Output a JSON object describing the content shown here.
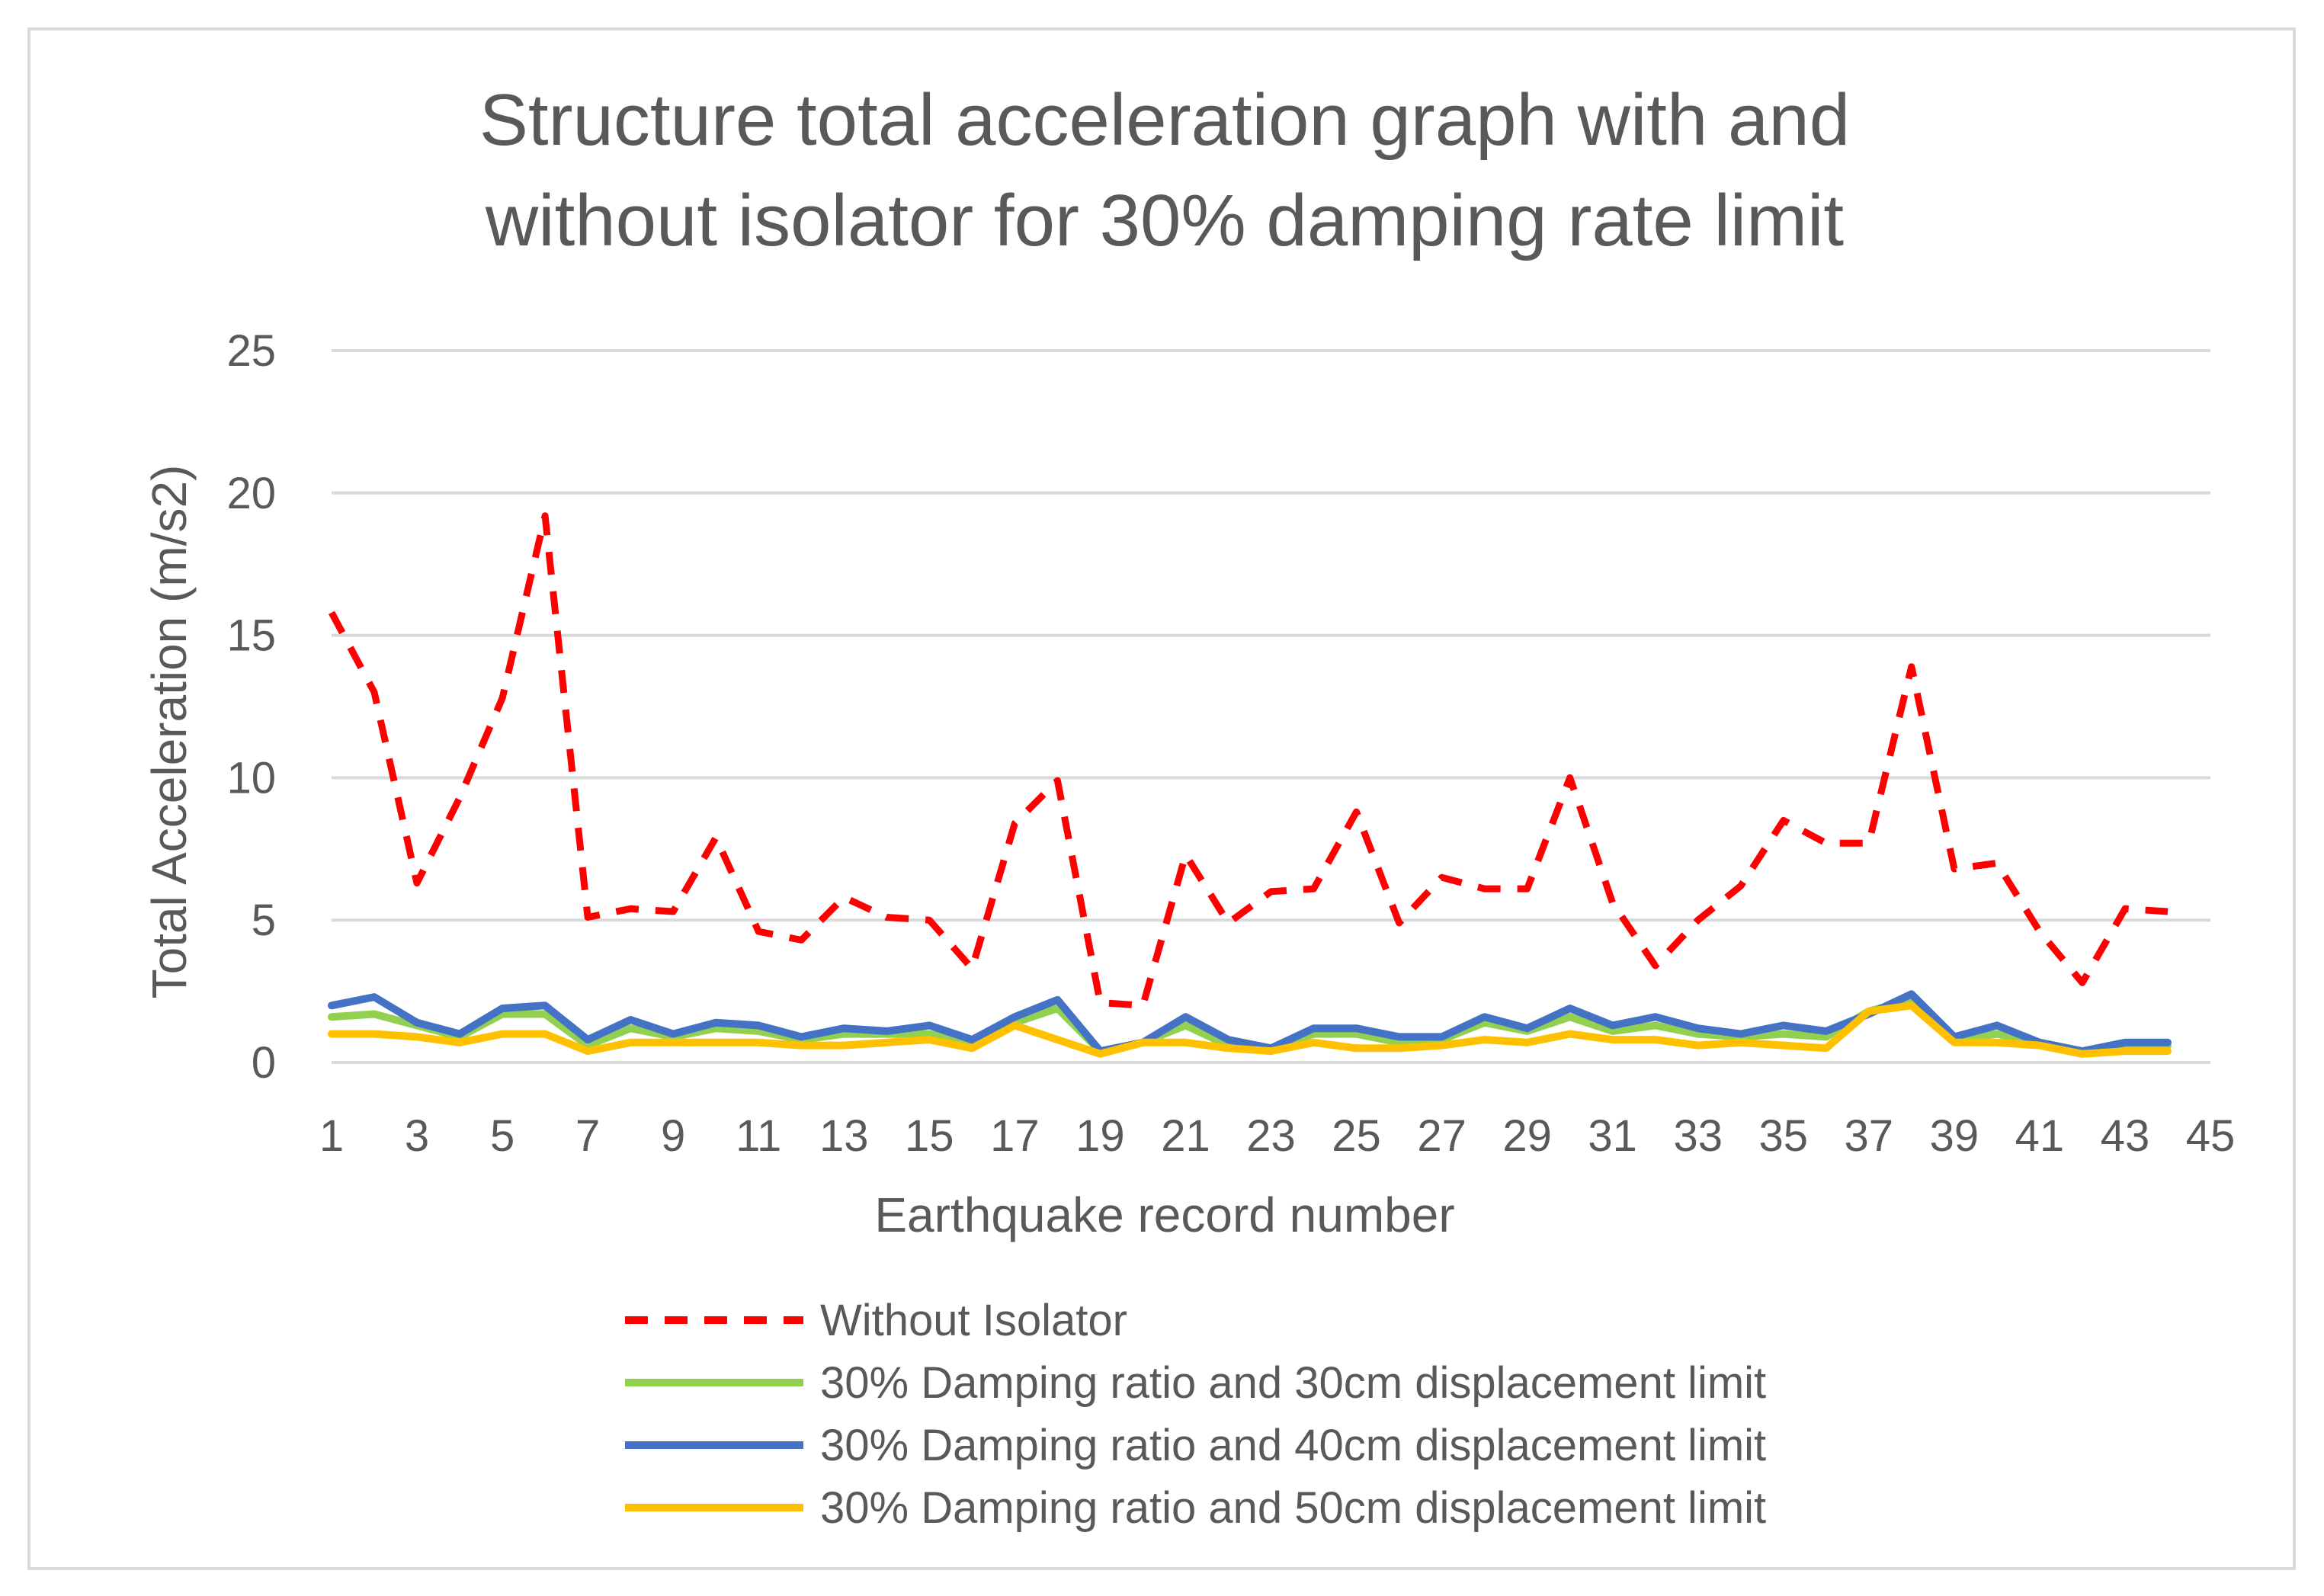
{
  "chart_data": {
    "type": "line",
    "title_lines": [
      "Structure total acceleration graph with and",
      "without isolator for 30% damping rate limit"
    ],
    "xlabel": "Earthquake record number",
    "ylabel": "Total Acceleration (m/s2)",
    "xlim": [
      1,
      45
    ],
    "ylim": [
      0,
      25
    ],
    "x_ticks": [
      "1",
      "3",
      "5",
      "7",
      "9",
      "11",
      "13",
      "15",
      "17",
      "19",
      "21",
      "23",
      "25",
      "27",
      "29",
      "31",
      "33",
      "35",
      "37",
      "39",
      "41",
      "43",
      "45"
    ],
    "y_ticks": [
      "0",
      "5",
      "10",
      "15",
      "20",
      "25"
    ],
    "grid": "horizontal",
    "legend_position": "bottom",
    "x": [
      1,
      2,
      3,
      4,
      5,
      6,
      7,
      8,
      9,
      10,
      11,
      12,
      13,
      14,
      15,
      16,
      17,
      18,
      19,
      20,
      21,
      22,
      23,
      24,
      25,
      26,
      27,
      28,
      29,
      30,
      31,
      32,
      33,
      34,
      35,
      36,
      37,
      38,
      39,
      40,
      41,
      42,
      43,
      44
    ],
    "series": [
      {
        "name": "Without Isolator",
        "color": "#ff0000",
        "dashed": true,
        "values": [
          15.8,
          13.0,
          6.3,
          9.3,
          12.8,
          19.2,
          5.1,
          5.4,
          5.3,
          7.9,
          4.6,
          4.3,
          5.8,
          5.1,
          5.0,
          3.3,
          8.4,
          9.9,
          2.1,
          2.0,
          7.3,
          4.9,
          6.0,
          6.1,
          8.8,
          4.9,
          6.5,
          6.1,
          6.1,
          10.0,
          5.6,
          3.4,
          5.0,
          6.2,
          8.5,
          7.7,
          7.7,
          13.9,
          6.8,
          7.0,
          4.6,
          2.8,
          5.4,
          5.3
        ]
      },
      {
        "name": "30% Damping ratio and 30cm displacement limit",
        "color": "#92d050",
        "dashed": false,
        "values": [
          1.6,
          1.7,
          1.3,
          0.9,
          1.7,
          1.7,
          0.6,
          1.2,
          0.9,
          1.2,
          1.1,
          0.8,
          1.0,
          1.0,
          1.0,
          0.7,
          1.4,
          1.9,
          0.4,
          0.7,
          1.3,
          0.6,
          0.5,
          1.0,
          1.0,
          0.7,
          0.8,
          1.4,
          1.1,
          1.6,
          1.1,
          1.3,
          1.0,
          0.9,
          1.0,
          0.9,
          1.8,
          2.2,
          0.8,
          1.0,
          0.7,
          0.4,
          0.6,
          0.6
        ]
      },
      {
        "name": "30% Damping ratio and 40cm displacement limit",
        "color": "#4472c4",
        "dashed": false,
        "values": [
          2.0,
          2.3,
          1.4,
          1.0,
          1.9,
          2.0,
          0.8,
          1.5,
          1.0,
          1.4,
          1.3,
          0.9,
          1.2,
          1.1,
          1.3,
          0.8,
          1.6,
          2.2,
          0.4,
          0.7,
          1.6,
          0.8,
          0.5,
          1.2,
          1.2,
          0.9,
          0.9,
          1.6,
          1.2,
          1.9,
          1.3,
          1.6,
          1.2,
          1.0,
          1.3,
          1.1,
          1.7,
          2.4,
          0.9,
          1.3,
          0.7,
          0.4,
          0.7,
          0.7
        ]
      },
      {
        "name": "30% Damping ratio and 50cm displacement limit",
        "color": "#ffc000",
        "dashed": false,
        "values": [
          1.0,
          1.0,
          0.9,
          0.7,
          1.0,
          1.0,
          0.4,
          0.7,
          0.7,
          0.7,
          0.7,
          0.6,
          0.6,
          0.7,
          0.8,
          0.5,
          1.3,
          0.8,
          0.3,
          0.7,
          0.7,
          0.5,
          0.4,
          0.7,
          0.5,
          0.5,
          0.6,
          0.8,
          0.7,
          1.0,
          0.8,
          0.8,
          0.6,
          0.7,
          0.6,
          0.5,
          1.8,
          2.0,
          0.7,
          0.7,
          0.6,
          0.3,
          0.4,
          0.4
        ]
      }
    ]
  }
}
